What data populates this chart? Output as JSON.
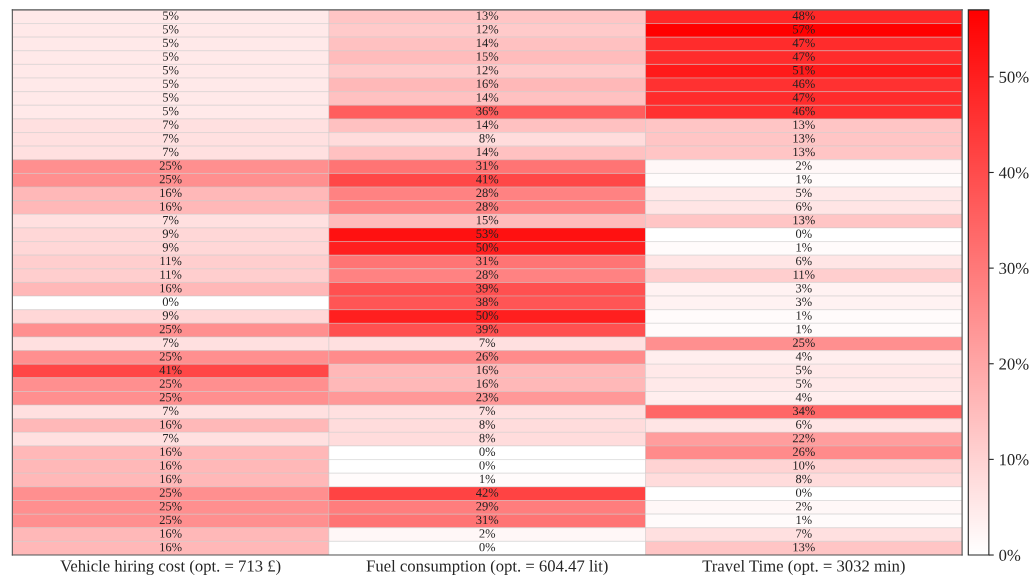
{
  "chart_data": {
    "type": "heatmap",
    "categories": [
      "Vehicle hiring cost (opt. = 713 £)",
      "Fuel consumption (opt. = 604.47 lit)",
      "Travel Time (opt. = 3032 min)"
    ],
    "y_categories": [
      null,
      null,
      null,
      null,
      null,
      null,
      null,
      null,
      null,
      null,
      null,
      null,
      null,
      null,
      null,
      null,
      null,
      null,
      null,
      null,
      null,
      null,
      null,
      null,
      null,
      null,
      null,
      null,
      null,
      null,
      null,
      null,
      null,
      null,
      null,
      null,
      null,
      null,
      null,
      null
    ],
    "cells": [
      [
        5,
        13,
        48
      ],
      [
        5,
        12,
        57
      ],
      [
        5,
        14,
        47
      ],
      [
        5,
        15,
        47
      ],
      [
        5,
        12,
        51
      ],
      [
        5,
        16,
        46
      ],
      [
        5,
        14,
        47
      ],
      [
        5,
        36,
        46
      ],
      [
        7,
        14,
        13
      ],
      [
        7,
        8,
        13
      ],
      [
        7,
        14,
        13
      ],
      [
        25,
        31,
        2
      ],
      [
        25,
        41,
        1
      ],
      [
        16,
        28,
        5
      ],
      [
        16,
        28,
        6
      ],
      [
        7,
        15,
        13
      ],
      [
        9,
        53,
        0
      ],
      [
        9,
        50,
        1
      ],
      [
        11,
        31,
        6
      ],
      [
        11,
        28,
        11
      ],
      [
        16,
        39,
        3
      ],
      [
        0,
        38,
        3
      ],
      [
        9,
        50,
        1
      ],
      [
        25,
        39,
        1
      ],
      [
        7,
        7,
        25
      ],
      [
        25,
        26,
        4
      ],
      [
        41,
        16,
        5
      ],
      [
        25,
        16,
        5
      ],
      [
        25,
        23,
        4
      ],
      [
        7,
        7,
        34
      ],
      [
        16,
        8,
        6
      ],
      [
        7,
        8,
        22
      ],
      [
        16,
        0,
        26
      ],
      [
        16,
        0,
        10
      ],
      [
        16,
        1,
        8
      ],
      [
        25,
        42,
        0
      ],
      [
        25,
        29,
        2
      ],
      [
        25,
        31,
        1
      ],
      [
        16,
        2,
        7
      ],
      [
        16,
        0,
        13
      ]
    ],
    "cell_labels": [
      [
        "5%",
        "13%",
        "48%"
      ],
      [
        "5%",
        "12%",
        "57%"
      ],
      [
        "5%",
        "14%",
        "47%"
      ],
      [
        "5%",
        "15%",
        "47%"
      ],
      [
        "5%",
        "12%",
        "51%"
      ],
      [
        "5%",
        "16%",
        "46%"
      ],
      [
        "5%",
        "14%",
        "47%"
      ],
      [
        "5%",
        "36%",
        "46%"
      ],
      [
        "7%",
        "14%",
        "13%"
      ],
      [
        "7%",
        "8%",
        "13%"
      ],
      [
        "7%",
        "14%",
        "13%"
      ],
      [
        "25%",
        "31%",
        "2%"
      ],
      [
        "25%",
        "41%",
        "1%"
      ],
      [
        "16%",
        "28%",
        "5%"
      ],
      [
        "16%",
        "28%",
        "6%"
      ],
      [
        "7%",
        "15%",
        "13%"
      ],
      [
        "9%",
        "53%",
        "0%"
      ],
      [
        "9%",
        "50%",
        "1%"
      ],
      [
        "11%",
        "31%",
        "6%"
      ],
      [
        "11%",
        "28%",
        "11%"
      ],
      [
        "16%",
        "39%",
        "3%"
      ],
      [
        "0%",
        "38%",
        "3%"
      ],
      [
        "9%",
        "50%",
        "1%"
      ],
      [
        "25%",
        "39%",
        "1%"
      ],
      [
        "7%",
        "7%",
        "25%"
      ],
      [
        "25%",
        "26%",
        "4%"
      ],
      [
        "41%",
        "16%",
        "5%"
      ],
      [
        "25%",
        "16%",
        "5%"
      ],
      [
        "25%",
        "23%",
        "4%"
      ],
      [
        "7%",
        "7%",
        "34%"
      ],
      [
        "16%",
        "8%",
        "6%"
      ],
      [
        "7%",
        "8%",
        "22%"
      ],
      [
        "16%",
        "0%",
        "26%"
      ],
      [
        "16%",
        "0%",
        "10%"
      ],
      [
        "16%",
        "1%",
        "8%"
      ],
      [
        "25%",
        "42%",
        "0%"
      ],
      [
        "25%",
        "29%",
        "2%"
      ],
      [
        "25%",
        "31%",
        "1%"
      ],
      [
        "16%",
        "2%",
        "7%"
      ],
      [
        "16%",
        "0%",
        "13%"
      ]
    ],
    "clim": [
      0,
      57
    ],
    "cticks": [
      {
        "value": 0,
        "label": "0%"
      },
      {
        "value": 10,
        "label": "10%"
      },
      {
        "value": 20,
        "label": "20%"
      },
      {
        "value": 30,
        "label": "30%"
      },
      {
        "value": 40,
        "label": "40%"
      },
      {
        "value": 50,
        "label": "50%"
      }
    ]
  }
}
